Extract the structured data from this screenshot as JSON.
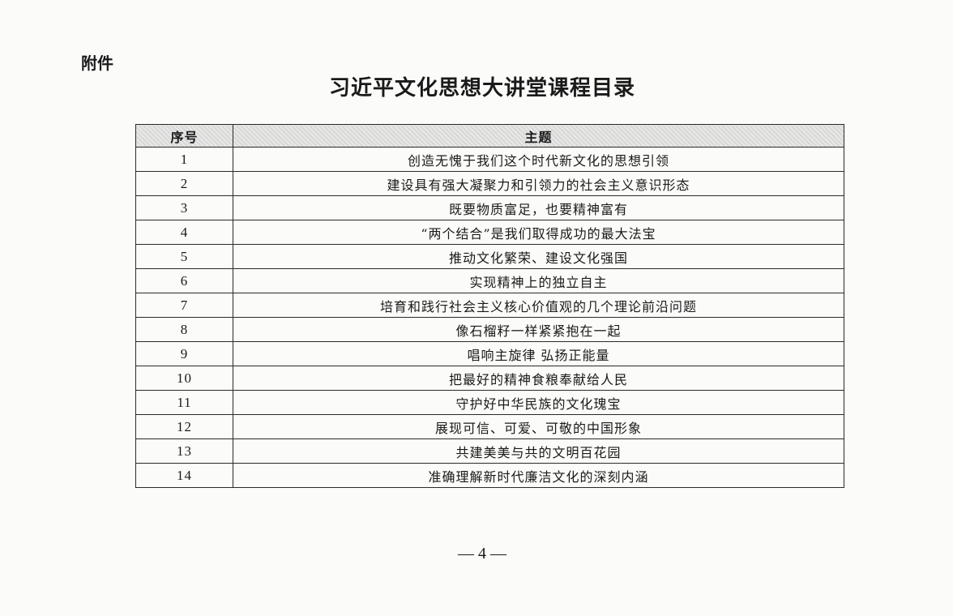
{
  "attachment_label": "附件",
  "title": "习近平文化思想大讲堂课程目录",
  "table": {
    "headers": [
      "序号",
      "主题"
    ],
    "rows": [
      [
        "1",
        "创造无愧于我们这个时代新文化的思想引领"
      ],
      [
        "2",
        "建设具有强大凝聚力和引领力的社会主义意识形态"
      ],
      [
        "3",
        "既要物质富足，也要精神富有"
      ],
      [
        "4",
        "“两个结合”是我们取得成功的最大法宝"
      ],
      [
        "5",
        "推动文化繁荣、建设文化强国"
      ],
      [
        "6",
        "实现精神上的独立自主"
      ],
      [
        "7",
        "培育和践行社会主义核心价值观的几个理论前沿问题"
      ],
      [
        "8",
        "像石榴籽一样紧紧抱在一起"
      ],
      [
        "9",
        "唱响主旋律  弘扬正能量"
      ],
      [
        "10",
        "把最好的精神食粮奉献给人民"
      ],
      [
        "11",
        "守护好中华民族的文化瑰宝"
      ],
      [
        "12",
        "展现可信、可爱、可敬的中国形象"
      ],
      [
        "13",
        "共建美美与共的文明百花园"
      ],
      [
        "14",
        "准确理解新时代廉洁文化的深刻内涵"
      ]
    ]
  },
  "page_number": "— 4 —"
}
